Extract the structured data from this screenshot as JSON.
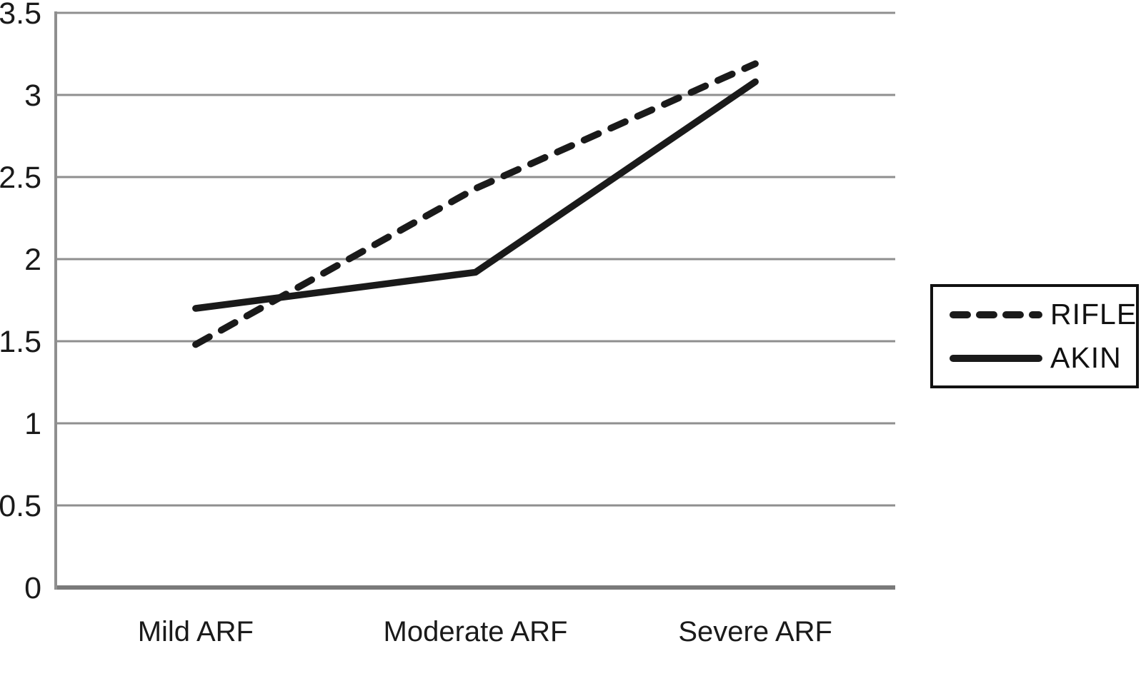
{
  "chart_data": {
    "type": "line",
    "categories": [
      "Mild ARF",
      "Moderate ARF",
      "Severe ARF"
    ],
    "series": [
      {
        "name": "RIFLE",
        "style": "dashed",
        "values": [
          1.48,
          2.43,
          3.19
        ]
      },
      {
        "name": "AKIN",
        "style": "solid",
        "values": [
          1.7,
          1.92,
          3.08
        ]
      }
    ],
    "title": "",
    "xlabel": "",
    "ylabel": "",
    "ylim": [
      0,
      3.5
    ],
    "ytick_step": 0.5,
    "ytick_labels": [
      "0",
      "0.5",
      "1",
      "1.5",
      "2",
      "2.5",
      "3",
      "3.5"
    ],
    "grid": true,
    "legend_position": "right",
    "line_color": "#1a1a1a",
    "grid_color": "#8f8f8f",
    "axis_color": "#7a7a7a"
  }
}
